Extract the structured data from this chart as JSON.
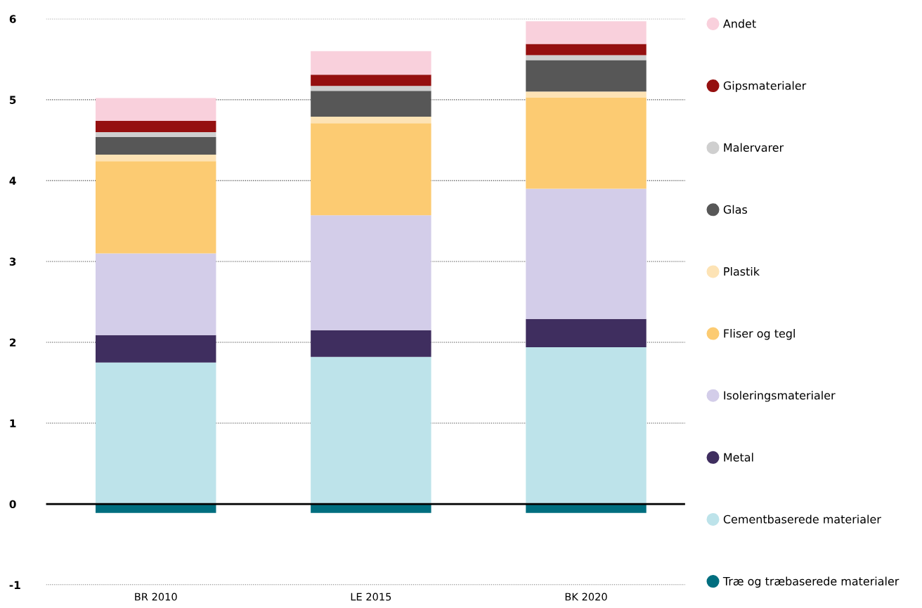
{
  "chart_data": {
    "type": "bar",
    "stacked": true,
    "categories": [
      "BR 2010",
      "LE 2015",
      "BK 2020"
    ],
    "series": [
      {
        "name": "Træ og træbaserede materialer",
        "color": "#006e7f",
        "values": [
          -0.11,
          -0.11,
          -0.11
        ]
      },
      {
        "name": "Cementbaserede materialer",
        "color": "#bde3ea",
        "values": [
          1.75,
          1.82,
          1.94
        ]
      },
      {
        "name": "Metal",
        "color": "#3f2e5f",
        "values": [
          0.34,
          0.33,
          0.35
        ]
      },
      {
        "name": "Isoleringsmaterialer",
        "color": "#d3cde9",
        "values": [
          1.01,
          1.42,
          1.61
        ]
      },
      {
        "name": "Fliser og tegl",
        "color": "#fccb72",
        "values": [
          1.14,
          1.14,
          1.13
        ]
      },
      {
        "name": "Plastik",
        "color": "#fde3b5",
        "values": [
          0.08,
          0.08,
          0.07
        ]
      },
      {
        "name": "Glas",
        "color": "#575757",
        "values": [
          0.22,
          0.32,
          0.39
        ]
      },
      {
        "name": "Malervarer",
        "color": "#cfcfcf",
        "values": [
          0.06,
          0.06,
          0.06
        ]
      },
      {
        "name": "Gipsmaterialer",
        "color": "#951010",
        "values": [
          0.14,
          0.14,
          0.14
        ]
      },
      {
        "name": "Andet",
        "color": "#f9d0dc",
        "values": [
          0.28,
          0.29,
          0.28
        ]
      }
    ],
    "ylim": [
      -1,
      6
    ],
    "yticks": [
      -1,
      0,
      1,
      2,
      3,
      4,
      5,
      6
    ],
    "grid": "y",
    "legend": "right",
    "marker": "circle",
    "ref_lines": [
      {
        "axis": "y",
        "value": 0,
        "color": "#000000",
        "line_style": "solid"
      }
    ]
  }
}
